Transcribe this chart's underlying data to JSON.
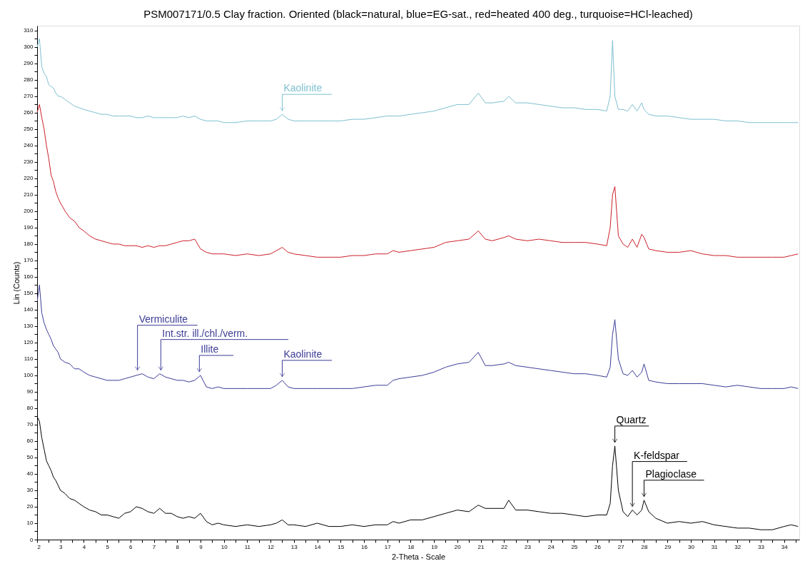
{
  "chart_data": {
    "type": "line",
    "title": "PSM007171/0.5 Clay fraction. Oriented (black=natural, blue=EG-sat., red=heated 400 deg., turquoise=HCl-leached)",
    "xlabel": "2-Theta - Scale",
    "ylabel": "Lin (Counts)",
    "xlim": [
      2,
      34.65
    ],
    "ylim": [
      0,
      313
    ],
    "xticks": [
      2,
      {
        "value": 2.5,
        "label": null
      },
      3,
      {
        "value": 3.5,
        "label": null
      },
      4,
      {
        "value": 4.5,
        "label": null
      },
      5,
      {
        "value": 5.5,
        "label": null
      },
      6,
      {
        "value": 6.5,
        "label": null
      },
      7,
      {
        "value": 7.5,
        "label": null
      },
      8,
      {
        "value": 8.5,
        "label": null
      },
      9,
      {
        "value": 9.5,
        "label": null
      },
      10,
      {
        "value": 10.5,
        "label": null
      },
      11,
      {
        "value": 11.5,
        "label": null
      },
      12,
      {
        "value": 12.5,
        "label": null
      },
      13,
      {
        "value": 13.5,
        "label": null
      },
      14,
      {
        "value": 14.5,
        "label": null
      },
      15,
      {
        "value": 15.5,
        "label": null
      },
      16,
      {
        "value": 16.5,
        "label": null
      },
      17,
      {
        "value": 17.5,
        "label": null
      },
      18,
      {
        "value": 18.5,
        "label": null
      },
      19,
      {
        "value": 19.5,
        "label": null
      },
      20,
      {
        "value": 20.5,
        "label": null
      },
      21,
      {
        "value": 21.5,
        "label": null
      },
      22,
      {
        "value": 22.5,
        "label": null
      },
      23,
      {
        "value": 23.5,
        "label": null
      },
      24,
      {
        "value": 24.5,
        "label": null
      },
      25,
      {
        "value": 25.5,
        "label": null
      },
      26,
      {
        "value": 26.5,
        "label": null
      },
      27,
      {
        "value": 27.5,
        "label": null
      },
      28,
      {
        "value": 28.5,
        "label": null
      },
      29,
      {
        "value": 29.5,
        "label": null
      },
      30,
      {
        "value": 30.5,
        "label": null
      },
      31,
      {
        "value": 31.5,
        "label": null
      },
      32,
      {
        "value": 32.5,
        "label": null
      },
      33,
      {
        "value": 33.5,
        "label": null
      },
      34,
      {
        "value": 34.5,
        "label": null
      }
    ],
    "yticks": [
      0,
      {
        "value": 5,
        "label": null
      },
      10,
      {
        "value": 15,
        "label": null
      },
      20,
      {
        "value": 25,
        "label": null
      },
      30,
      {
        "value": 35,
        "label": null
      },
      40,
      {
        "value": 45,
        "label": null
      },
      50,
      {
        "value": 55,
        "label": null
      },
      60,
      {
        "value": 65,
        "label": null
      },
      70,
      {
        "value": 75,
        "label": null
      },
      80,
      {
        "value": 85,
        "label": null
      },
      90,
      {
        "value": 95,
        "label": null
      },
      100,
      {
        "value": 105,
        "label": null
      },
      110,
      {
        "value": 115,
        "label": null
      },
      120,
      {
        "value": 125,
        "label": null
      },
      130,
      {
        "value": 135,
        "label": null
      },
      140,
      {
        "value": 145,
        "label": null
      },
      150,
      {
        "value": 155,
        "label": null
      },
      160,
      {
        "value": 165,
        "label": null
      },
      170,
      {
        "value": 175,
        "label": null
      },
      180,
      {
        "value": 185,
        "label": null
      },
      190,
      {
        "value": 195,
        "label": null
      },
      200,
      {
        "value": 205,
        "label": null
      },
      210,
      {
        "value": 215,
        "label": null
      },
      220,
      {
        "value": 225,
        "label": null
      },
      230,
      {
        "value": 235,
        "label": null
      },
      240,
      {
        "value": 245,
        "label": null
      },
      250,
      {
        "value": 255,
        "label": null
      },
      260,
      {
        "value": 265,
        "label": null
      },
      270,
      {
        "value": 275,
        "label": null
      },
      280,
      {
        "value": 285,
        "label": null
      },
      290,
      {
        "value": 295,
        "label": null
      },
      300,
      {
        "value": 305,
        "label": null
      },
      310
    ],
    "x": [
      2.0,
      2.1,
      2.2,
      2.3,
      2.4,
      2.5,
      2.6,
      2.7,
      2.8,
      2.9,
      3.0,
      3.2,
      3.4,
      3.6,
      3.8,
      4.0,
      4.25,
      4.5,
      4.75,
      5.0,
      5.25,
      5.5,
      5.75,
      6.0,
      6.25,
      6.5,
      6.75,
      7.0,
      7.25,
      7.5,
      7.75,
      8.0,
      8.25,
      8.5,
      8.75,
      9.0,
      9.25,
      9.5,
      9.75,
      10.0,
      10.5,
      11,
      11.5,
      12,
      12.25,
      12.5,
      12.75,
      13,
      13.5,
      14,
      14.5,
      15,
      15.5,
      16,
      16.5,
      17,
      17.25,
      17.5,
      18,
      18.5,
      19,
      19.5,
      20,
      20.5,
      20.9,
      21.2,
      21.5,
      22,
      22.2,
      22.5,
      23,
      23.5,
      24,
      24.5,
      25,
      25.5,
      26,
      26.4,
      26.55,
      26.65,
      26.75,
      26.9,
      27.1,
      27.3,
      27.5,
      27.7,
      27.9,
      28.0,
      28.2,
      28.5,
      29,
      29.5,
      30,
      30.5,
      31,
      31.5,
      32,
      32.5,
      33,
      33.5,
      34,
      34.3,
      34.6
    ],
    "series": [
      {
        "color": "#000000",
        "values": [
          75,
          72,
          62,
          55,
          48,
          45,
          42,
          38,
          36,
          33,
          30,
          28,
          25,
          24,
          22,
          20,
          18,
          17,
          15,
          15,
          14,
          13,
          16,
          17,
          20,
          19,
          17,
          16,
          19,
          16,
          16,
          14,
          13,
          14,
          13,
          16,
          11,
          9,
          10,
          9,
          8,
          9,
          8,
          9,
          10,
          12,
          9,
          9,
          8,
          10,
          8,
          8,
          9,
          8,
          9,
          9,
          11,
          10,
          12,
          12,
          14,
          16,
          18,
          17,
          21,
          19,
          19,
          19,
          24,
          18,
          18,
          17,
          16,
          16,
          15,
          14,
          15,
          15,
          22,
          45,
          57,
          30,
          17,
          14,
          18,
          15,
          18,
          24,
          17,
          13,
          10,
          11,
          10,
          11,
          9,
          8,
          7,
          7,
          6,
          6,
          8,
          9,
          8
        ]
      },
      {
        "color": "#3c3c96",
        "values": [
          145,
          155,
          138,
          132,
          128,
          125,
          122,
          118,
          116,
          114,
          110,
          108,
          107,
          104,
          104,
          102,
          100,
          99,
          98,
          97,
          97,
          97,
          98,
          99,
          100,
          101,
          99,
          98,
          101,
          99,
          98,
          97,
          97,
          96,
          97,
          100,
          93,
          92,
          93,
          92,
          92,
          92,
          92,
          92,
          94,
          97,
          93,
          92,
          92,
          92,
          92,
          92,
          92,
          93,
          94,
          94,
          97,
          98,
          99,
          100,
          102,
          105,
          107,
          108,
          114,
          106,
          106,
          107,
          108,
          106,
          105,
          104,
          103,
          102,
          101,
          101,
          100,
          99,
          105,
          125,
          134,
          110,
          101,
          100,
          103,
          99,
          102,
          107,
          97,
          96,
          95,
          95,
          95,
          95,
          94,
          93,
          94,
          93,
          92,
          92,
          92,
          93,
          92
        ]
      },
      {
        "color": "#cc1f2a",
        "values": [
          260,
          265,
          257,
          250,
          240,
          232,
          222,
          218,
          212,
          208,
          205,
          200,
          196,
          194,
          190,
          188,
          185,
          183,
          182,
          181,
          180,
          180,
          179,
          179,
          179,
          178,
          179,
          178,
          179,
          179,
          180,
          181,
          182,
          182,
          183,
          177,
          175,
          174,
          174,
          174,
          173,
          174,
          173,
          174,
          176,
          178,
          175,
          174,
          173,
          172,
          172,
          172,
          173,
          173,
          174,
          174,
          176,
          175,
          176,
          177,
          178,
          181,
          182,
          183,
          188,
          183,
          182,
          184,
          185,
          183,
          182,
          183,
          182,
          181,
          181,
          181,
          180,
          179,
          190,
          210,
          215,
          185,
          180,
          178,
          183,
          178,
          186,
          184,
          177,
          176,
          175,
          175,
          176,
          174,
          173,
          173,
          172,
          172,
          172,
          172,
          172,
          173,
          174
        ]
      },
      {
        "color": "#7fc0d0",
        "values": [
          300,
          305,
          288,
          284,
          282,
          277,
          276,
          275,
          272,
          270,
          270,
          268,
          266,
          264,
          263,
          262,
          261,
          260,
          259,
          259,
          258,
          258,
          258,
          258,
          257,
          257,
          258,
          257,
          257,
          257,
          257,
          257,
          258,
          257,
          258,
          256,
          255,
          255,
          255,
          254,
          254,
          255,
          255,
          255,
          256,
          259,
          256,
          255,
          255,
          255,
          255,
          255,
          256,
          256,
          257,
          258,
          258,
          258,
          259,
          260,
          261,
          263,
          265,
          265,
          272,
          266,
          266,
          267,
          270,
          266,
          266,
          265,
          264,
          263,
          263,
          262,
          262,
          261,
          270,
          304,
          270,
          262,
          262,
          261,
          265,
          261,
          266,
          262,
          259,
          258,
          258,
          257,
          256,
          256,
          256,
          255,
          255,
          254,
          254,
          254,
          254,
          254,
          254
        ]
      }
    ],
    "annotations": [
      {
        "text": "Kaolinite",
        "x": 12.5,
        "y": 259
      },
      {
        "text": "Vermiculite",
        "x": 6.3,
        "y": 101
      },
      {
        "text": "Int.str. ill./chl./verm.",
        "x": 7.3,
        "y": 101
      },
      {
        "text": "Illite",
        "x": 8.95,
        "y": 100
      },
      {
        "text": "Kaolinite",
        "x": 12.5,
        "y": 97
      },
      {
        "text": "Quartz",
        "x": 26.75,
        "y": 57
      },
      {
        "text": "K-feldspar",
        "x": 27.5,
        "y": 18
      },
      {
        "text": "Plagioclase",
        "x": 28.0,
        "y": 24
      }
    ]
  }
}
